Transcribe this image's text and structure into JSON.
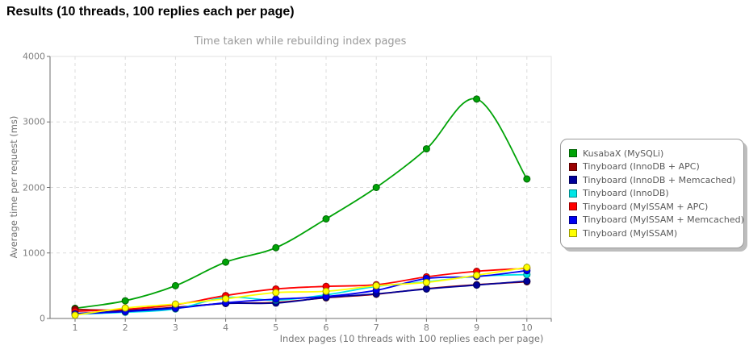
{
  "header": {
    "title": "Results (10 threads, 100 replies each per page)"
  },
  "chart_data": {
    "type": "line",
    "title": "Time taken while rebuilding index pages",
    "xlabel": "Index pages (10 threads with 100 replies each per page)",
    "ylabel": "Average time per request (ms)",
    "x": [
      1,
      2,
      3,
      4,
      5,
      6,
      7,
      8,
      9,
      10
    ],
    "xticks": [
      "1",
      "2",
      "3",
      "4",
      "5",
      "6",
      "7",
      "8",
      "9",
      "10"
    ],
    "yticks": [
      0,
      1000,
      2000,
      3000,
      4000
    ],
    "ylim": [
      0,
      4000
    ],
    "grid": "dashed",
    "legend_position": "right",
    "series": [
      {
        "name": "KusabaX (MySQLi)",
        "color": "#00A307",
        "values": [
          155,
          270,
          500,
          860,
          1080,
          1520,
          2000,
          2590,
          3350,
          2130
        ]
      },
      {
        "name": "Tinyboard (InnoDB + APC)",
        "color": "#990000",
        "values": [
          140,
          125,
          170,
          230,
          245,
          315,
          370,
          455,
          515,
          560
        ]
      },
      {
        "name": "Tinyboard (InnoDB + Memcached)",
        "color": "#000099",
        "values": [
          75,
          115,
          165,
          230,
          235,
          320,
          375,
          450,
          510,
          570
        ]
      },
      {
        "name": "Tinyboard (InnoDB)",
        "color": "#00E5E5",
        "values": [
          65,
          95,
          145,
          320,
          280,
          360,
          490,
          560,
          645,
          670
        ]
      },
      {
        "name": "Tinyboard (MyISSAM + APC)",
        "color": "#FF0000",
        "values": [
          110,
          140,
          210,
          350,
          450,
          490,
          515,
          635,
          720,
          765
        ]
      },
      {
        "name": "Tinyboard (MyISSAM + Memcached)",
        "color": "#0000F0",
        "values": [
          70,
          105,
          155,
          240,
          295,
          335,
          430,
          610,
          640,
          730
        ]
      },
      {
        "name": "Tinyboard (MyISSAM)",
        "color": "#FFFF00",
        "values": [
          50,
          160,
          220,
          300,
          395,
          415,
          500,
          550,
          660,
          780
        ]
      }
    ]
  },
  "colors": {
    "grid_line": "#dcdcdc",
    "plot_border": "#e2e2e2",
    "axis_line": "#6e6e6e",
    "tick_text": "#808080",
    "title_text": "#9a9a9a",
    "axis_title_text": "#757575",
    "legend_border": "#999999",
    "legend_shadow": "#bdbdbd",
    "legend_text": "#5a5a5a",
    "heading_text": "#000000"
  }
}
